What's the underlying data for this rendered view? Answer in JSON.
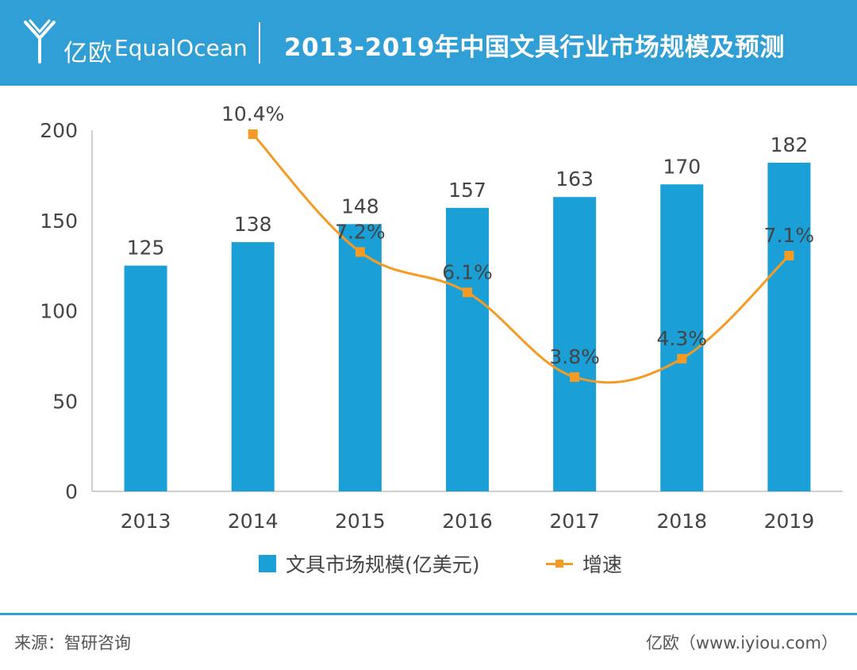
{
  "header": {
    "logo_cn": "亿欧",
    "logo_en": "EqualOcean",
    "title": "2013-2019年中国文具行业市场规模及预测"
  },
  "colors": {
    "header_bg": "#2f9fd6",
    "bar": "#1a9fd6",
    "line": "#f59b24",
    "axis": "#bfbfbf",
    "text": "#444444"
  },
  "chart_data": {
    "type": "bar",
    "categories": [
      "2013",
      "2014",
      "2015",
      "2016",
      "2017",
      "2018",
      "2019"
    ],
    "ylim": [
      0,
      200
    ],
    "yticks": [
      "0",
      "50",
      "100",
      "150",
      "200"
    ],
    "grid": false,
    "legend_position": "bottom-center",
    "series": [
      {
        "name": "文具市场规模(亿美元)",
        "type": "bar",
        "values": [
          125,
          138,
          148,
          157,
          163,
          170,
          182
        ],
        "labels": [
          "125",
          "138",
          "148",
          "157",
          "163",
          "170",
          "182"
        ]
      },
      {
        "name": "增速",
        "type": "line",
        "values": [
          null,
          10.4,
          7.2,
          6.1,
          3.8,
          4.3,
          7.1
        ],
        "labels": [
          "",
          "10.4%",
          "7.2%",
          "6.1%",
          "3.8%",
          "4.3%",
          "7.1%"
        ],
        "unit": "%",
        "marker": "square",
        "smooth": true,
        "secondary_axis_hidden": true
      }
    ]
  },
  "footer": {
    "source": "来源：智研咨询",
    "credit": "亿欧（www.iyiou.com）"
  }
}
